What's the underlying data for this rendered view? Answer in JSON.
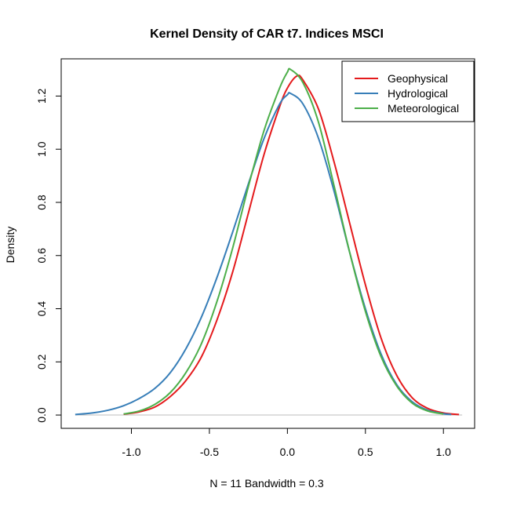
{
  "chart_data": {
    "type": "line",
    "title": "Kernel Density of CAR t7. Indices MSCI",
    "xlabel": "N = 11   Bandwidth = 0.3",
    "ylabel": "Density",
    "xlim": [
      -1.45,
      1.2
    ],
    "ylim": [
      -0.05,
      1.34
    ],
    "xticks": [
      -1.0,
      -0.5,
      0.0,
      0.5,
      1.0
    ],
    "xtick_labels": [
      "-1.0",
      "-0.5",
      "0.0",
      "0.5",
      "1.0"
    ],
    "yticks": [
      0.0,
      0.2,
      0.4,
      0.6,
      0.8,
      1.0,
      1.2
    ],
    "ytick_labels": [
      "0.0",
      "0.2",
      "0.4",
      "0.6",
      "0.8",
      "1.0",
      "1.2"
    ],
    "grid": false,
    "legend_position": "top-right",
    "baseline": {
      "y": 0,
      "color": "#bebebe"
    },
    "series": [
      {
        "name": "Geophysical",
        "color": "#e41a1c",
        "x": [
          -1.05,
          -0.95,
          -0.85,
          -0.75,
          -0.65,
          -0.55,
          -0.45,
          -0.35,
          -0.25,
          -0.15,
          -0.05,
          0.0,
          0.06,
          0.1,
          0.2,
          0.3,
          0.4,
          0.5,
          0.6,
          0.7,
          0.8,
          0.9,
          1.0,
          1.1
        ],
        "y": [
          0.003,
          0.012,
          0.03,
          0.07,
          0.13,
          0.22,
          0.36,
          0.54,
          0.76,
          0.98,
          1.16,
          1.23,
          1.275,
          1.26,
          1.15,
          0.95,
          0.72,
          0.49,
          0.29,
          0.15,
          0.065,
          0.025,
          0.008,
          0.002
        ]
      },
      {
        "name": "Hydrological",
        "color": "#377eb8",
        "x": [
          -1.36,
          -1.25,
          -1.15,
          -1.05,
          -0.95,
          -0.85,
          -0.75,
          -0.65,
          -0.55,
          -0.45,
          -0.35,
          -0.25,
          -0.15,
          -0.05,
          0.0,
          0.02,
          0.1,
          0.2,
          0.3,
          0.4,
          0.5,
          0.6,
          0.7,
          0.8,
          0.9,
          1.0,
          1.05
        ],
        "y": [
          0.002,
          0.008,
          0.018,
          0.035,
          0.062,
          0.1,
          0.16,
          0.25,
          0.37,
          0.52,
          0.69,
          0.87,
          1.04,
          1.17,
          1.205,
          1.21,
          1.17,
          1.04,
          0.84,
          0.61,
          0.4,
          0.23,
          0.115,
          0.05,
          0.018,
          0.005,
          0.002
        ]
      },
      {
        "name": "Meteorological",
        "color": "#4daf4a",
        "x": [
          -1.05,
          -0.95,
          -0.85,
          -0.75,
          -0.65,
          -0.55,
          -0.45,
          -0.35,
          -0.25,
          -0.15,
          -0.05,
          0.0,
          0.02,
          0.1,
          0.2,
          0.3,
          0.4,
          0.5,
          0.6,
          0.7,
          0.8,
          0.9,
          1.0
        ],
        "y": [
          0.004,
          0.015,
          0.04,
          0.085,
          0.16,
          0.27,
          0.43,
          0.63,
          0.86,
          1.07,
          1.23,
          1.29,
          1.3,
          1.25,
          1.1,
          0.86,
          0.61,
          0.39,
          0.22,
          0.11,
          0.045,
          0.015,
          0.004
        ]
      }
    ]
  }
}
